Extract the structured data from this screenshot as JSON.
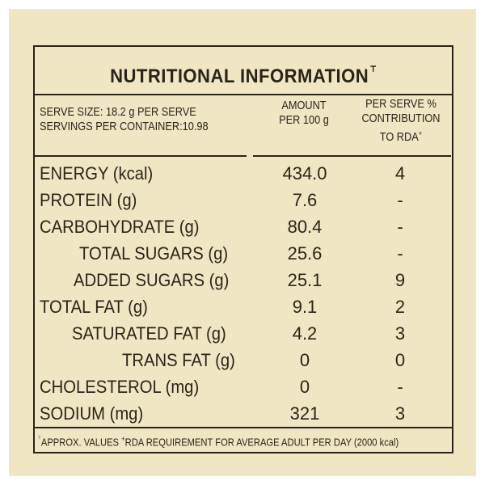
{
  "title": "NUTRITIONAL INFORMATION",
  "title_mark": "⸆",
  "header": {
    "serve_size": "SERVE SIZE: 18.2 g PER SERVE",
    "servings": "SERVINGS PER CONTAINER:10.98",
    "amount_line1": "AMOUNT",
    "amount_line2": "PER 100 g",
    "rda_line1": "PER SERVE %",
    "rda_line2": "CONTRIBUTION",
    "rda_line3": "TO RDA",
    "rda_mark": "+"
  },
  "rows": [
    {
      "label": "ENERGY (kcal)",
      "amount": "434.0",
      "rda": "4"
    },
    {
      "label": "PROTEIN (g)",
      "amount": "7.6",
      "rda": "-"
    },
    {
      "label": "CARBOHYDRATE (g)",
      "amount": "80.4",
      "rda": "-"
    },
    {
      "label": "TOTAL SUGARS (g)",
      "amount": "25.6",
      "rda": "-"
    },
    {
      "label": "ADDED SUGARS (g)",
      "amount": "25.1",
      "rda": "9"
    },
    {
      "label": "TOTAL FAT (g)",
      "amount": "9.1",
      "rda": "2"
    },
    {
      "label": "SATURATED FAT (g)",
      "amount": "4.2",
      "rda": "3"
    },
    {
      "label": "TRANS FAT (g)",
      "amount": "0",
      "rda": "0"
    },
    {
      "label": "CHOLESTEROL (mg)",
      "amount": "0",
      "rda": "-"
    },
    {
      "label": "SODIUM (mg)",
      "amount": "321",
      "rda": "3"
    }
  ],
  "footnote": {
    "mark1": "⸆",
    "text1": "APPROX. VALUES",
    "mark2": "+",
    "text2": "RDA REQUIREMENT FOR AVERAGE ADULT PER DAY (2000 kcal)"
  }
}
